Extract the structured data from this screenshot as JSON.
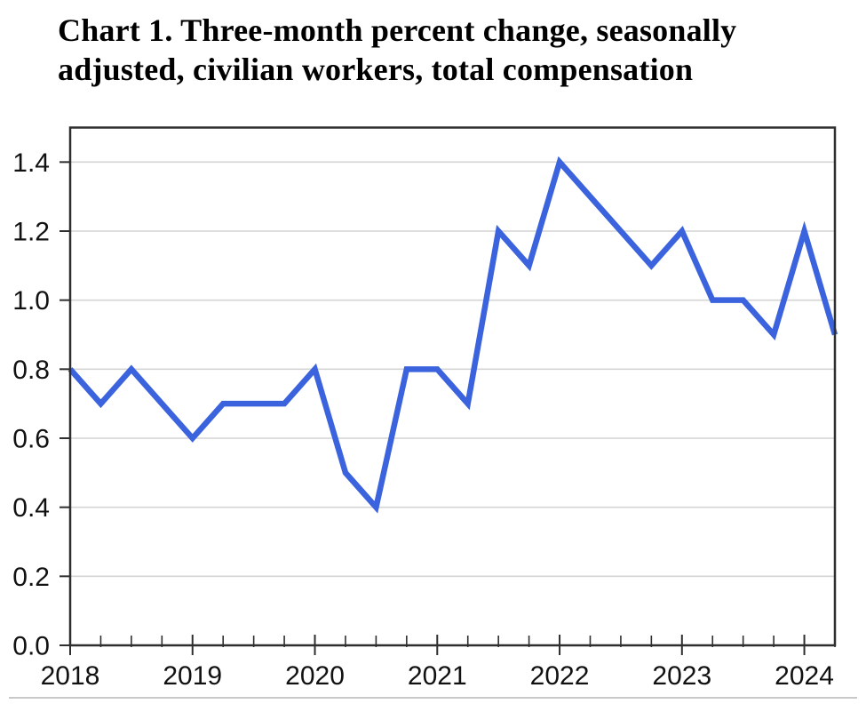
{
  "header": {
    "title_lines": [
      "Chart 1. Three-month percent change, seasonally",
      "adjusted, civilian workers, total compensation"
    ]
  },
  "chart_data": {
    "type": "line",
    "title": "Chart 1. Three-month percent change, seasonally adjusted, civilian workers, total compensation",
    "series": [
      {
        "name": "Three-month percent change, total compensation, civilian workers",
        "values": [
          0.8,
          0.7,
          0.8,
          0.7,
          0.6,
          0.7,
          0.7,
          0.7,
          0.8,
          0.5,
          0.4,
          0.8,
          0.8,
          0.7,
          1.2,
          1.1,
          1.4,
          1.3,
          1.2,
          1.1,
          1.2,
          1.0,
          1.0,
          0.9,
          1.2,
          0.9
        ]
      }
    ],
    "x": [
      "2018 Q1",
      "2018 Q2",
      "2018 Q3",
      "2018 Q4",
      "2019 Q1",
      "2019 Q2",
      "2019 Q3",
      "2019 Q4",
      "2020 Q1",
      "2020 Q2",
      "2020 Q3",
      "2020 Q4",
      "2021 Q1",
      "2021 Q2",
      "2021 Q3",
      "2021 Q4",
      "2022 Q1",
      "2022 Q2",
      "2022 Q3",
      "2022 Q4",
      "2023 Q1",
      "2023 Q2",
      "2023 Q3",
      "2023 Q4",
      "2024 Q1",
      "2024 Q2"
    ],
    "xlabel": "",
    "ylabel": "",
    "xtick_labels": [
      "2018",
      "2019",
      "2020",
      "2021",
      "2022",
      "2023",
      "2024"
    ],
    "ytick_labels": [
      "0.0",
      "0.2",
      "0.4",
      "0.6",
      "0.8",
      "1.0",
      "1.2",
      "1.4"
    ],
    "ylim": [
      0.0,
      1.5
    ],
    "grid": "horizontal",
    "legend": "none",
    "colors": {
      "line": "#3b63de",
      "gridline": "#d4d4d4",
      "axis": "#2e2e2e",
      "text": "#111111"
    }
  }
}
